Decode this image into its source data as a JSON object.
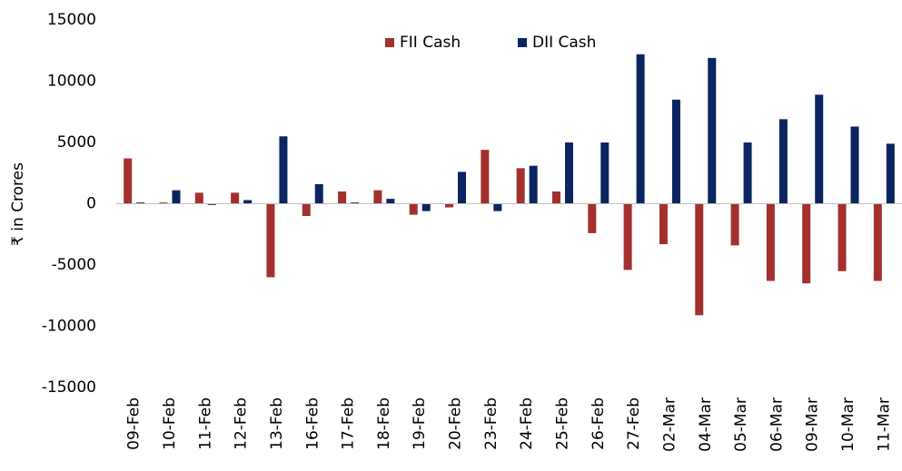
{
  "chart_data": {
    "type": "bar",
    "y_label": "₹ in Crores",
    "categories": [
      "09-Feb",
      "10-Feb",
      "11-Feb",
      "12-Feb",
      "13-Feb",
      "16-Feb",
      "17-Feb",
      "18-Feb",
      "19-Feb",
      "20-Feb",
      "23-Feb",
      "24-Feb",
      "25-Feb",
      "26-Feb",
      "27-Feb",
      "02-Mar",
      "04-Mar",
      "05-Mar",
      "06-Mar",
      "09-Mar",
      "10-Mar",
      "11-Mar"
    ],
    "series": [
      {
        "name": "FII Cash",
        "color": "#a3302e",
        "values": [
          3700,
          100,
          900,
          900,
          -6000,
          -1000,
          1000,
          1100,
          -900,
          -300,
          4400,
          2900,
          1000,
          -2400,
          -5400,
          -3300,
          -9100,
          -3400,
          -6300,
          -6500,
          -5500,
          -6300
        ]
      },
      {
        "name": "DII Cash",
        "color": "#0b2560",
        "values": [
          100,
          1100,
          -100,
          300,
          5500,
          1600,
          100,
          400,
          -600,
          2600,
          -600,
          3100,
          5000,
          5000,
          12200,
          8500,
          11900,
          5000,
          6900,
          8900,
          6300,
          4900
        ]
      }
    ],
    "ylim": [
      -15000,
      15000
    ],
    "yticks": [
      -15000,
      -10000,
      -5000,
      0,
      5000,
      10000,
      15000
    ],
    "legend": "top"
  }
}
